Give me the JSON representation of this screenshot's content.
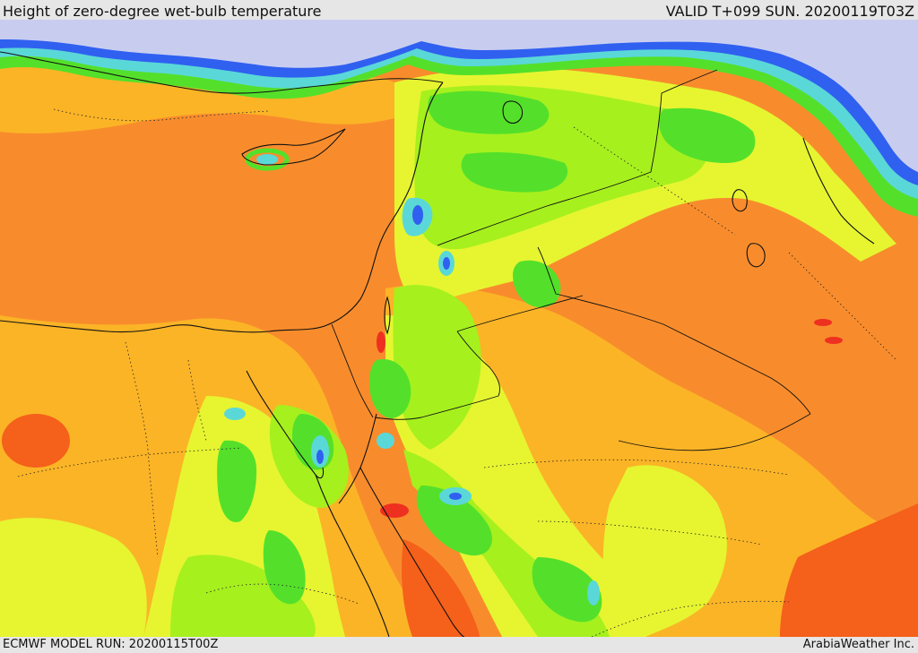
{
  "header": {
    "title": "Height of zero-degree wet-bulb temperature",
    "valid": "VALID T+099 SUN. 20200119T03Z"
  },
  "footer": {
    "model_run": "ECMWF MODEL RUN: 20200115T00Z",
    "credit": "ArabiaWeather Inc."
  },
  "colors": {
    "orange": "#f88c2c",
    "dark_orange": "#f5601a",
    "red": "#ee3020",
    "yellow_orange": "#fbb426",
    "yellow": "#e6f530",
    "light_green": "#a6f01e",
    "green": "#54e02a",
    "cyan": "#5ad8d8",
    "blue": "#3060f0",
    "lavender": "#c8cdf0",
    "boundary": "#111111"
  }
}
